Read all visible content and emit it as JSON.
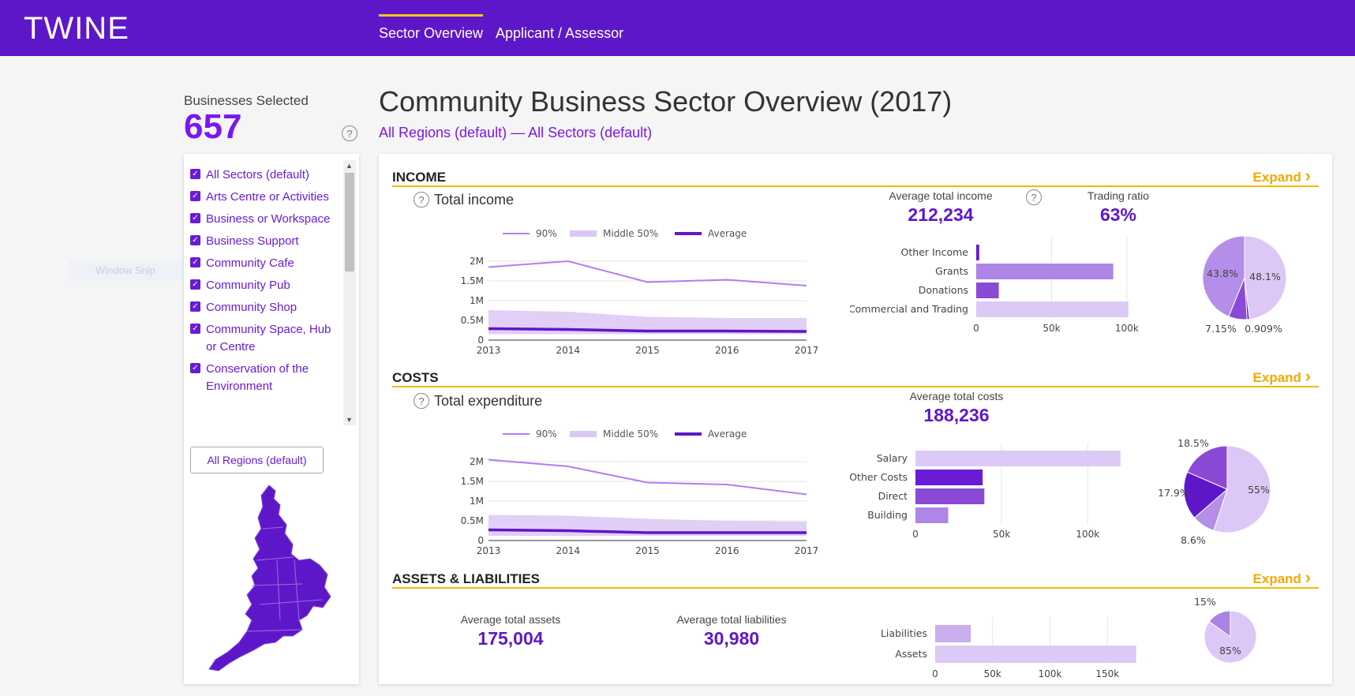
{
  "app": {
    "logo": "TWINE"
  },
  "nav": {
    "tabs": [
      {
        "label": "Sector Overview",
        "active": true
      },
      {
        "label": "Applicant / Assessor",
        "active": false
      }
    ]
  },
  "sidebar": {
    "selected_label": "Businesses Selected",
    "selected_count": "657",
    "help": "?",
    "sectors": [
      "All Sectors (default)",
      "Arts Centre or Activities",
      "Business or Workspace",
      "Business Support",
      "Community Cafe",
      "Community Pub",
      "Community Shop",
      "Community Space, Hub or Centre",
      "Conservation of the Environment"
    ],
    "regions_button": "All Regions (default)",
    "window_snip": "Window Snip"
  },
  "main": {
    "title": "Community Business Sector Overview (2017)",
    "subtitle": "All Regions (default) — All Sectors (default)",
    "expand_label": "Expand",
    "expand_arrow": "›"
  },
  "income": {
    "section_title": "INCOME",
    "chart_title": "Total income",
    "avg_label": "Average total income",
    "avg_value": "212,234",
    "ratio_label": "Trading ratio",
    "ratio_value": "63%"
  },
  "costs": {
    "section_title": "COSTS",
    "chart_title": "Total expenditure",
    "avg_label": "Average total costs",
    "avg_value": "188,236"
  },
  "assets": {
    "section_title": "ASSETS & LIABILITIES",
    "assets_label": "Average total assets",
    "assets_value": "175,004",
    "liab_label": "Average total liabilities",
    "liab_value": "30,980"
  },
  "colors": {
    "brand": "#5e17c8",
    "accent": "#f5b800",
    "line90": "#b57bf5",
    "band": "#dcc7f7",
    "avg": "#5e17c8"
  },
  "chart_data": [
    {
      "type": "line",
      "legend": [
        "90%",
        "Middle 50%",
        "Average"
      ],
      "x": [
        2013,
        2014,
        2015,
        2016,
        2017
      ],
      "series": [
        {
          "name": "90%",
          "values": [
            1850000,
            2000000,
            1470000,
            1530000,
            1380000
          ]
        },
        {
          "name": "Middle 50%",
          "values": [
            [
              150000,
              760000
            ],
            [
              150000,
              720000
            ],
            [
              150000,
              590000
            ],
            [
              150000,
              560000
            ],
            [
              150000,
              560000
            ]
          ]
        },
        {
          "name": "Average",
          "values": [
            290000,
            270000,
            230000,
            230000,
            220000
          ]
        }
      ],
      "ylim": [
        0,
        2000000
      ],
      "yticks": [
        "0",
        "0.5M",
        "1M",
        "1.5M",
        "2M"
      ]
    },
    {
      "type": "bar",
      "orientation": "horizontal",
      "categories": [
        "Other Income",
        "Grants",
        "Donations",
        "Commercial and Trading"
      ],
      "values": [
        2000,
        91000,
        15000,
        101000
      ],
      "xticks": [
        "0",
        "50k",
        "100k"
      ],
      "xlim": [
        0,
        110000
      ]
    },
    {
      "type": "pie",
      "labels": [
        "48.1%",
        "0.909%",
        "7.15%",
        "43.8%"
      ],
      "values": [
        48.1,
        0.909,
        7.15,
        43.8
      ],
      "colors": [
        "#dcc7f7",
        "#5e17c8",
        "#8a4ad6",
        "#b48ee8"
      ]
    },
    {
      "type": "line",
      "legend": [
        "90%",
        "Middle 50%",
        "Average"
      ],
      "x": [
        2013,
        2014,
        2015,
        2016,
        2017
      ],
      "series": [
        {
          "name": "90%",
          "values": [
            2050000,
            1880000,
            1470000,
            1420000,
            1170000
          ]
        },
        {
          "name": "Middle 50%",
          "values": [
            [
              120000,
              650000
            ],
            [
              120000,
              630000
            ],
            [
              120000,
              550000
            ],
            [
              120000,
              500000
            ],
            [
              120000,
              480000
            ]
          ]
        },
        {
          "name": "Average",
          "values": [
            270000,
            250000,
            200000,
            200000,
            200000
          ]
        }
      ],
      "ylim": [
        0,
        2000000
      ],
      "yticks": [
        "0",
        "0.5M",
        "1M",
        "1.5M",
        "2M"
      ]
    },
    {
      "type": "bar",
      "orientation": "horizontal",
      "categories": [
        "Salary",
        "Other Costs",
        "Direct",
        "Building"
      ],
      "values": [
        119000,
        39000,
        40000,
        19000
      ],
      "xticks": [
        "0",
        "50k",
        "100k"
      ],
      "xlim": [
        0,
        120000
      ]
    },
    {
      "type": "pie",
      "labels": [
        "55%",
        "8.6%",
        "17.9%",
        "18.5%"
      ],
      "values": [
        55,
        8.6,
        17.9,
        18.5
      ],
      "colors": [
        "#dcc7f7",
        "#b48ee8",
        "#5e17c8",
        "#8a4ad6"
      ]
    },
    {
      "type": "bar",
      "orientation": "horizontal",
      "categories": [
        "Liabilities",
        "Assets"
      ],
      "values": [
        31000,
        175000
      ],
      "xticks": [
        "0",
        "50k",
        "100k",
        "150k"
      ],
      "xlim": [
        0,
        180000
      ]
    },
    {
      "type": "pie",
      "labels": [
        "85%",
        "15%"
      ],
      "values": [
        85,
        15
      ],
      "colors": [
        "#dcc7f7",
        "#a984e6"
      ]
    }
  ]
}
